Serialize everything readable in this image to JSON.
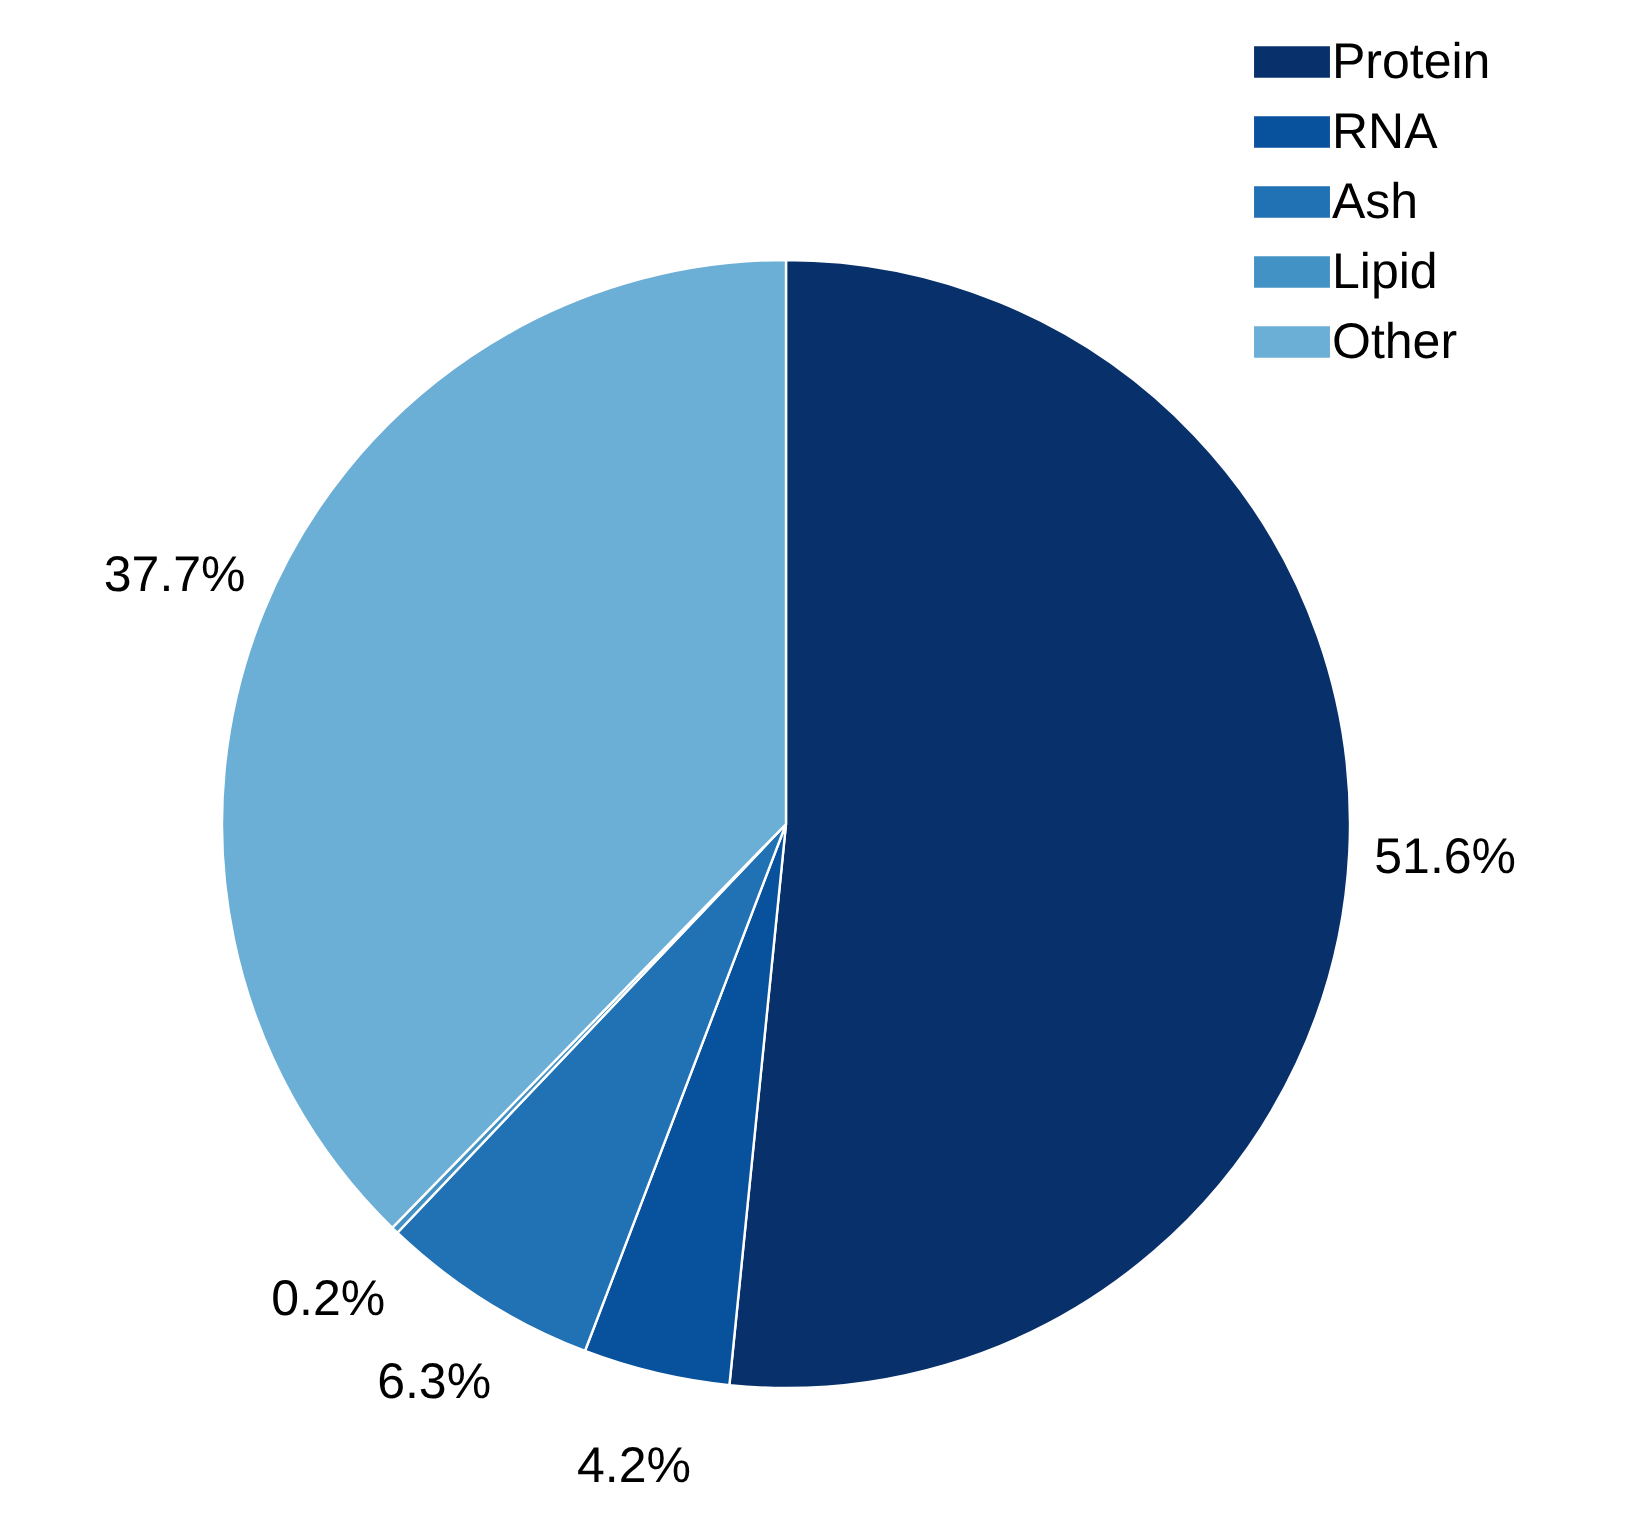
{
  "chart_data": {
    "type": "pie",
    "categories": [
      "Protein",
      "RNA",
      "Ash",
      "Lipid",
      "Other"
    ],
    "values": [
      51.6,
      4.2,
      6.3,
      0.2,
      37.7
    ],
    "colors": [
      "#08306b",
      "#08519c",
      "#2171b5",
      "#4292c6",
      "#6baed6"
    ],
    "value_labels": [
      "51.6%",
      "4.2%",
      "6.3%",
      "0.2%",
      "37.7%"
    ],
    "legend": "top right"
  }
}
